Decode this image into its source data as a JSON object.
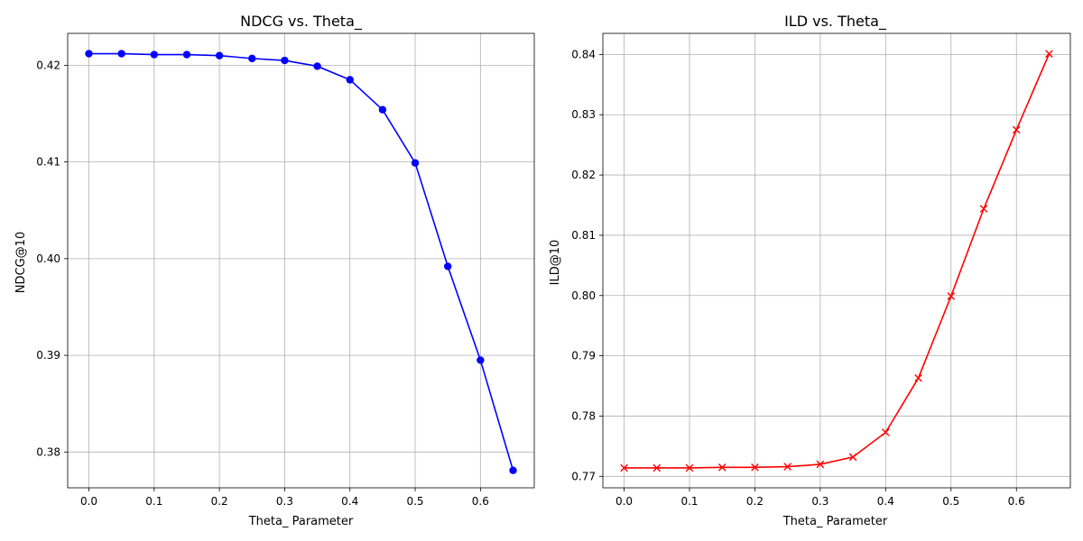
{
  "chart_data": [
    {
      "type": "line",
      "title": "NDCG vs. Theta_",
      "xlabel": "Theta_ Parameter",
      "ylabel": "NDCG@10",
      "grid": true,
      "xlim": [
        -0.0325,
        0.6825
      ],
      "ylim": [
        0.3763,
        0.4233
      ],
      "xticks": [
        0.0,
        0.1,
        0.2,
        0.3,
        0.4,
        0.5,
        0.6
      ],
      "xtick_labels": [
        "0.0",
        "0.1",
        "0.2",
        "0.3",
        "0.4",
        "0.5",
        "0.6"
      ],
      "yticks": [
        0.38,
        0.39,
        0.4,
        0.41,
        0.42
      ],
      "ytick_labels": [
        "0.38",
        "0.39",
        "0.40",
        "0.41",
        "0.42"
      ],
      "series": [
        {
          "color": "#0000ff",
          "marker": "circle",
          "x": [
            0.0,
            0.05,
            0.1,
            0.15,
            0.2,
            0.25,
            0.3,
            0.35,
            0.4,
            0.45,
            0.5,
            0.55,
            0.6,
            0.65
          ],
          "y": [
            0.4212,
            0.4212,
            0.4211,
            0.4211,
            0.421,
            0.4207,
            0.4205,
            0.4199,
            0.4185,
            0.4154,
            0.4099,
            0.3992,
            0.3895,
            0.3781
          ]
        }
      ]
    },
    {
      "type": "line",
      "title": "ILD vs. Theta_",
      "xlabel": "Theta_ Parameter",
      "ylabel": "ILD@10",
      "grid": true,
      "xlim": [
        -0.0325,
        0.6825
      ],
      "ylim": [
        0.7681,
        0.8435
      ],
      "xticks": [
        0.0,
        0.1,
        0.2,
        0.3,
        0.4,
        0.5,
        0.6
      ],
      "xtick_labels": [
        "0.0",
        "0.1",
        "0.2",
        "0.3",
        "0.4",
        "0.5",
        "0.6"
      ],
      "yticks": [
        0.77,
        0.78,
        0.79,
        0.8,
        0.81,
        0.82,
        0.83,
        0.84
      ],
      "ytick_labels": [
        "0.77",
        "0.78",
        "0.79",
        "0.80",
        "0.81",
        "0.82",
        "0.83",
        "0.84"
      ],
      "series": [
        {
          "color": "#ff0000",
          "marker": "x",
          "x": [
            0.0,
            0.05,
            0.1,
            0.15,
            0.2,
            0.25,
            0.3,
            0.35,
            0.4,
            0.45,
            0.5,
            0.55,
            0.6,
            0.65
          ],
          "y": [
            0.7714,
            0.7714,
            0.7714,
            0.7715,
            0.7715,
            0.7716,
            0.772,
            0.7732,
            0.7773,
            0.7863,
            0.7999,
            0.8144,
            0.8275,
            0.8401
          ]
        }
      ]
    }
  ]
}
